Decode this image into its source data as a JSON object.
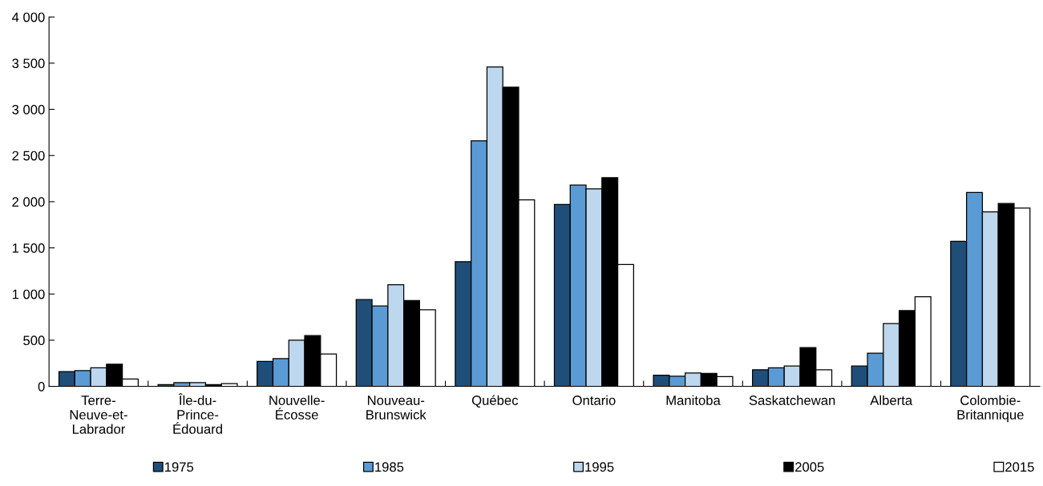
{
  "chart_data": {
    "type": "bar",
    "categories": [
      "Terre-\nNeuve-et-\nLabrador",
      "Île-du-\nPrince-\nÉdouard",
      "Nouvelle-\nÉcosse",
      "Nouveau-\nBrunswick",
      "Québec",
      "Ontario",
      "Manitoba",
      "Saskatchewan",
      "Alberta",
      "Colombie-\nBritannique"
    ],
    "series": [
      {
        "name": "1975",
        "color": "#1f4e79",
        "values": [
          160,
          20,
          270,
          940,
          1350,
          1970,
          120,
          180,
          220,
          1570
        ]
      },
      {
        "name": "1985",
        "color": "#5b9bd5",
        "values": [
          170,
          40,
          300,
          870,
          2660,
          2180,
          110,
          200,
          360,
          2100
        ]
      },
      {
        "name": "1995",
        "color": "#bdd7ee",
        "values": [
          200,
          40,
          500,
          1100,
          3460,
          2140,
          145,
          220,
          680,
          1890
        ]
      },
      {
        "name": "2005",
        "color": "#000000",
        "values": [
          240,
          20,
          550,
          930,
          3240,
          2260,
          140,
          420,
          820,
          1980
        ]
      },
      {
        "name": "2015",
        "color": "#ffffff",
        "values": [
          80,
          30,
          350,
          830,
          2020,
          1320,
          105,
          180,
          970,
          1930
        ]
      }
    ],
    "ylim": [
      0,
      4000
    ],
    "yticks": [
      0,
      500,
      {
        "value": 1000,
        "label": "1 000"
      },
      {
        "value": 1500,
        "label": "1 500"
      },
      {
        "value": 2000,
        "label": "2 000"
      },
      {
        "value": 2500,
        "label": "2 500"
      },
      {
        "value": 3000,
        "label": "3 000"
      },
      {
        "value": 3500,
        "label": "3 500"
      },
      {
        "value": 4000,
        "label": "4 000"
      }
    ],
    "legend": "bottom"
  }
}
